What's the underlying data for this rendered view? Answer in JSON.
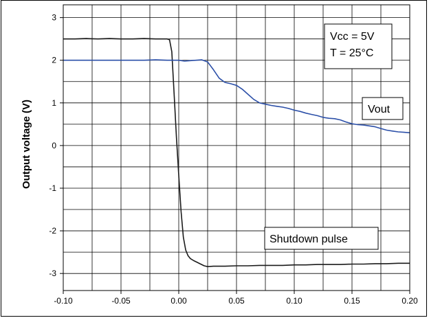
{
  "chart_data": {
    "type": "line",
    "ylabel": "Output voltage (V)",
    "xlabel": "",
    "xlim": [
      -0.1,
      0.2
    ],
    "ylim": [
      -3.4,
      3.3
    ],
    "x_ticks": [
      "-0.10",
      "-0.05",
      "0.00",
      "0.05",
      "0.10",
      "0.15",
      "0.20"
    ],
    "y_ticks": [
      "3",
      "2",
      "1",
      "0",
      "-1",
      "-2",
      "-3"
    ],
    "x_tick_values": [
      -0.1,
      -0.05,
      0.0,
      0.05,
      0.1,
      0.15,
      0.2
    ],
    "y_tick_values": [
      3,
      2,
      1,
      0,
      -1,
      -2,
      -3
    ],
    "x_minor_step": 0.025,
    "y_minor_step": 0.5,
    "grid": true,
    "annotations": [
      {
        "text": [
          "Vcc = 5V",
          "T = 25°C"
        ]
      },
      {
        "text": [
          "Vout"
        ]
      },
      {
        "text": [
          "Shutdown pulse"
        ]
      }
    ],
    "series": [
      {
        "color": "#1a1a1a",
        "x": [
          -0.1,
          -0.09,
          -0.08,
          -0.07,
          -0.06,
          -0.05,
          -0.04,
          -0.03,
          -0.02,
          -0.015,
          -0.01,
          -0.008,
          -0.006,
          -0.004,
          -0.002,
          0.0,
          0.002,
          0.004,
          0.006,
          0.008,
          0.01,
          0.013,
          0.016,
          0.019,
          0.022,
          0.025,
          0.03,
          0.04,
          0.05,
          0.06,
          0.07,
          0.08,
          0.09,
          0.1,
          0.11,
          0.12,
          0.13,
          0.14,
          0.15,
          0.16,
          0.17,
          0.18,
          0.19,
          0.2
        ],
        "y": [
          2.5,
          2.5,
          2.51,
          2.5,
          2.51,
          2.5,
          2.5,
          2.51,
          2.5,
          2.5,
          2.5,
          2.48,
          2.2,
          1.2,
          0.2,
          -0.7,
          -1.55,
          -2.15,
          -2.45,
          -2.58,
          -2.65,
          -2.7,
          -2.74,
          -2.78,
          -2.82,
          -2.84,
          -2.83,
          -2.83,
          -2.82,
          -2.82,
          -2.81,
          -2.81,
          -2.81,
          -2.8,
          -2.8,
          -2.79,
          -2.79,
          -2.79,
          -2.78,
          -2.78,
          -2.77,
          -2.77,
          -2.76,
          -2.76
        ]
      },
      {
        "color": "#2b4fa8",
        "x": [
          -0.1,
          -0.09,
          -0.08,
          -0.07,
          -0.06,
          -0.05,
          -0.04,
          -0.03,
          -0.02,
          -0.01,
          -0.005,
          0.0,
          0.005,
          0.01,
          0.015,
          0.02,
          0.025,
          0.03,
          0.035,
          0.04,
          0.045,
          0.05,
          0.055,
          0.06,
          0.065,
          0.07,
          0.075,
          0.08,
          0.085,
          0.09,
          0.095,
          0.1,
          0.105,
          0.11,
          0.115,
          0.12,
          0.125,
          0.13,
          0.135,
          0.14,
          0.145,
          0.15,
          0.155,
          0.16,
          0.165,
          0.17,
          0.175,
          0.18,
          0.185,
          0.19,
          0.195,
          0.2
        ],
        "y": [
          2.0,
          2.0,
          2.0,
          2.0,
          2.0,
          2.0,
          2.0,
          2.0,
          2.01,
          2.0,
          2.0,
          2.0,
          1.98,
          1.99,
          2.0,
          2.01,
          1.96,
          1.78,
          1.58,
          1.48,
          1.45,
          1.41,
          1.32,
          1.2,
          1.08,
          1.0,
          0.97,
          0.94,
          0.92,
          0.9,
          0.87,
          0.83,
          0.8,
          0.76,
          0.73,
          0.7,
          0.66,
          0.64,
          0.63,
          0.6,
          0.55,
          0.51,
          0.49,
          0.48,
          0.46,
          0.44,
          0.4,
          0.36,
          0.34,
          0.32,
          0.31,
          0.3
        ]
      }
    ]
  }
}
